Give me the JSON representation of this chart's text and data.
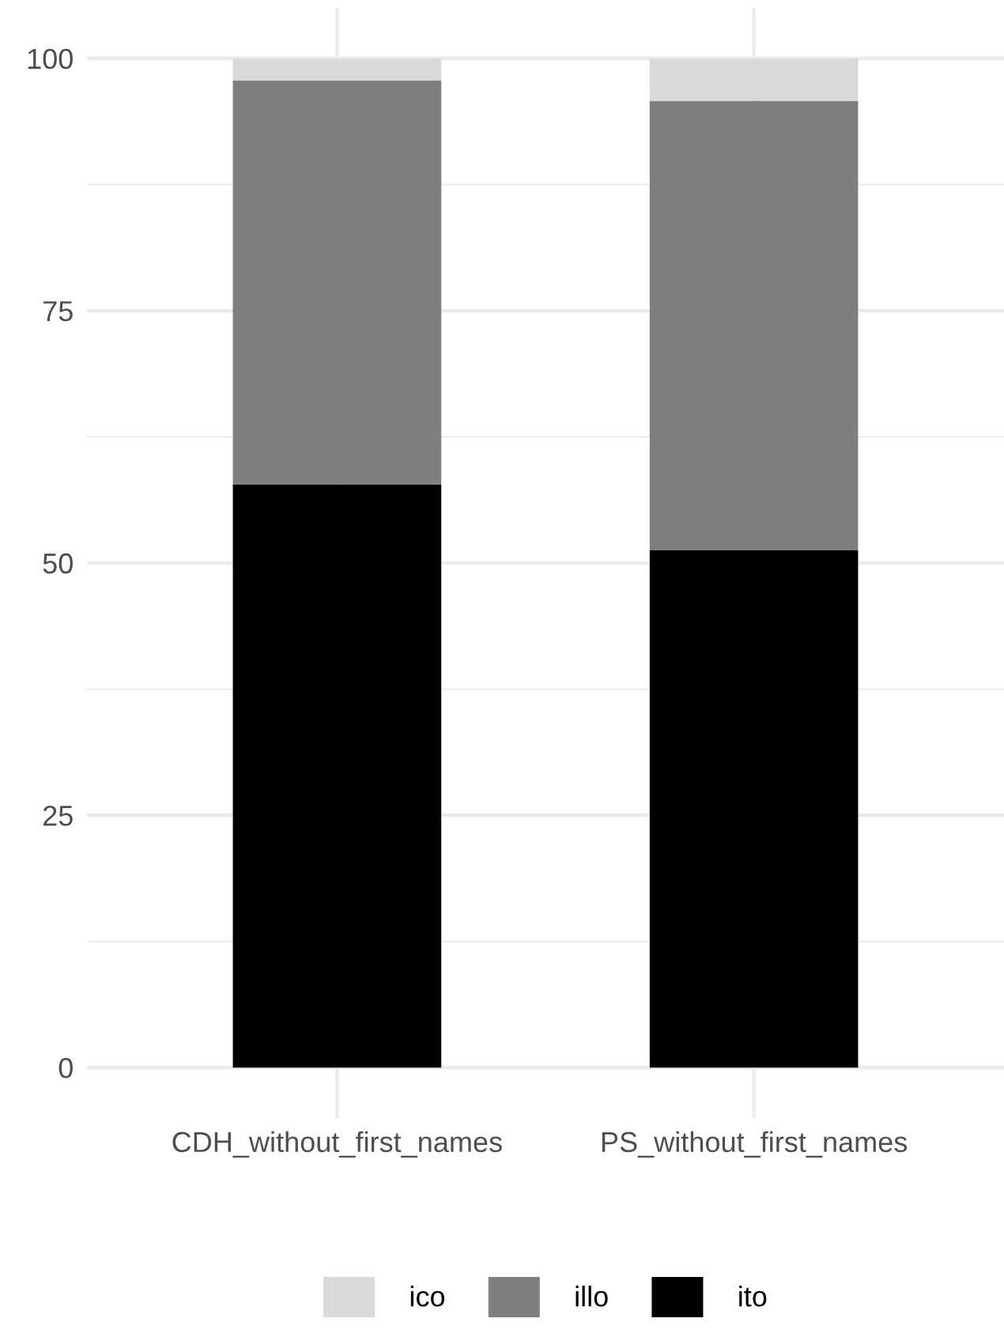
{
  "chart_data": {
    "type": "bar",
    "stacked": true,
    "categories": [
      "CDH_without_first_names",
      "PS_without_first_names"
    ],
    "series": [
      {
        "name": "ito",
        "color": "#000000",
        "values": [
          57.8,
          51.3
        ]
      },
      {
        "name": "illo",
        "color": "#7f7f7f",
        "values": [
          40.0,
          44.5
        ]
      },
      {
        "name": "ico",
        "color": "#d9d9d9",
        "values": [
          2.2,
          4.2
        ]
      }
    ],
    "ylim": [
      -5,
      105
    ],
    "yticks": [
      0,
      25,
      50,
      75,
      100
    ],
    "grid": true,
    "legend": "bottom"
  }
}
